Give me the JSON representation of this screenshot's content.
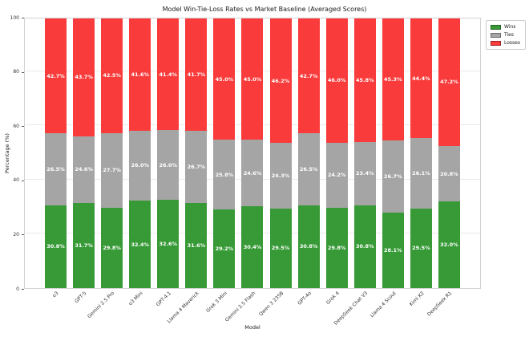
{
  "chart_data": {
    "type": "bar",
    "stacked": true,
    "title": "Model Win-Tie-Loss Rates vs Market Baseline (Averaged Scores)",
    "xlabel": "Model",
    "ylabel": "Percentage (%)",
    "ylim": [
      0,
      100
    ],
    "yticks": [
      0,
      20,
      40,
      60,
      80,
      100
    ],
    "grid": "horizontal",
    "gridline_color": "#e9e9e9",
    "legend": {
      "position": "upper-right-outside",
      "entries": [
        "Wins",
        "Ties",
        "Losses"
      ]
    },
    "categories": [
      "o3",
      "GPT-5",
      "Gemini 2.5 Pro",
      "o3 Mini",
      "GPT-4.1",
      "Llama 4 Maverick",
      "Grok 3 Mini",
      "Gemini 2.5 Flash",
      "Qwen 3 235B",
      "GPT-4o",
      "Grok 4",
      "DeepSeek Chat V3",
      "Llama 4 Scout",
      "Kimi K2",
      "DeepSeek R1"
    ],
    "series": [
      {
        "name": "Wins",
        "color": "#379a37",
        "values": [
          30.8,
          31.7,
          29.8,
          32.4,
          32.6,
          31.6,
          29.2,
          30.4,
          29.5,
          30.8,
          29.8,
          30.8,
          28.1,
          29.5,
          32.0
        ]
      },
      {
        "name": "Ties",
        "color": "#a5a5a5",
        "values": [
          26.5,
          24.6,
          27.7,
          26.0,
          26.0,
          26.7,
          25.8,
          24.6,
          24.3,
          26.5,
          24.2,
          23.4,
          26.7,
          26.1,
          20.8
        ]
      },
      {
        "name": "Losses",
        "color": "#f93b3b",
        "values": [
          42.7,
          43.7,
          42.5,
          41.6,
          41.4,
          41.7,
          45.0,
          45.0,
          46.2,
          42.7,
          46.0,
          45.8,
          45.3,
          44.4,
          47.2
        ]
      }
    ],
    "label_suffix": "%",
    "label_color": "#ffffff"
  }
}
